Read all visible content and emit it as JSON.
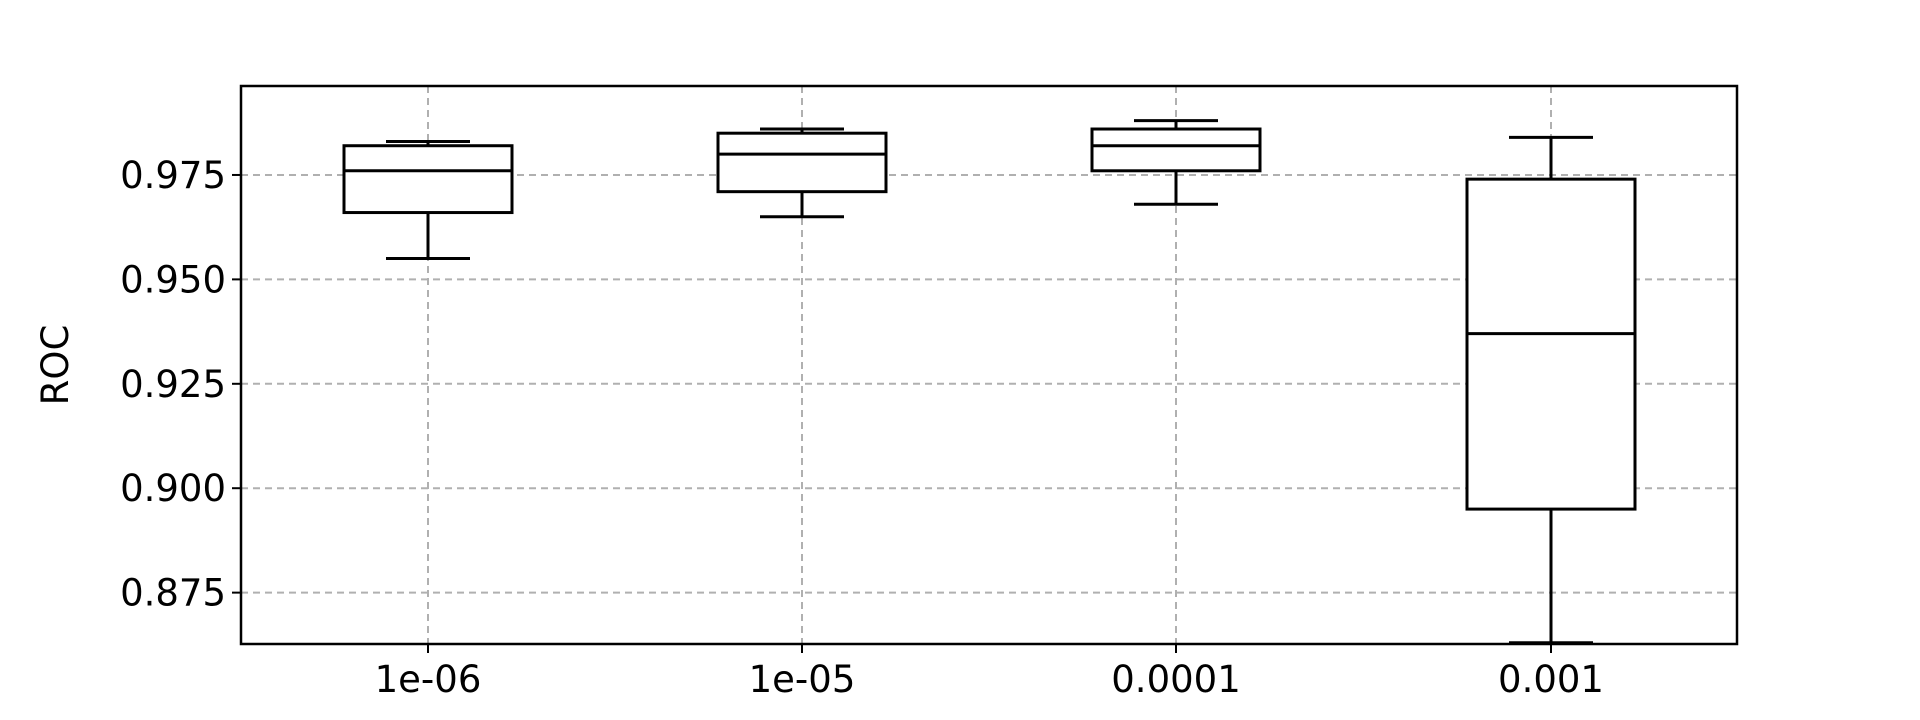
{
  "chart_data": {
    "type": "box",
    "categories": [
      "1e-06",
      "1e-05",
      "0.0001",
      "0.001"
    ],
    "boxes": [
      {
        "category": "1e-06",
        "whisker_low": 0.955,
        "q1": 0.966,
        "median": 0.976,
        "q3": 0.982,
        "whisker_high": 0.983
      },
      {
        "category": "1e-05",
        "whisker_low": 0.965,
        "q1": 0.971,
        "median": 0.98,
        "q3": 0.985,
        "whisker_high": 0.986
      },
      {
        "category": "0.0001",
        "whisker_low": 0.968,
        "q1": 0.976,
        "median": 0.982,
        "q3": 0.986,
        "whisker_high": 0.988
      },
      {
        "category": "0.001",
        "whisker_low": 0.863,
        "q1": 0.895,
        "median": 0.937,
        "q3": 0.974,
        "whisker_high": 0.984
      }
    ],
    "xlabel": "",
    "ylabel": "ROC",
    "ylim": [
      0.8627,
      0.9963
    ],
    "yticks": [
      "0.875",
      "0.900",
      "0.925",
      "0.950",
      "0.975"
    ],
    "grid": true,
    "colors": {
      "box": "#000000",
      "grid": "#b0b0b0",
      "frame": "#000000"
    }
  }
}
